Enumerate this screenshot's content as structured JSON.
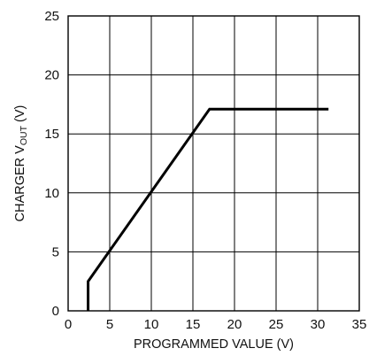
{
  "chart_data": {
    "type": "line",
    "xlabel": "PROGRAMMED VALUE (V)",
    "ylabel": {
      "prefix": "CHARGER V",
      "subscript": "OUT",
      "suffix": " (V)"
    },
    "xlim": [
      0,
      35
    ],
    "ylim": [
      0,
      25
    ],
    "x_ticks": [
      0,
      5,
      10,
      15,
      20,
      25,
      30,
      35
    ],
    "y_ticks": [
      0,
      5,
      10,
      15,
      20,
      25
    ],
    "grid": true,
    "legend": "none",
    "series": [
      {
        "color": "#000000",
        "points": [
          {
            "x": 2.4,
            "y": 0
          },
          {
            "x": 2.4,
            "y": 2.5
          },
          {
            "x": 17.0,
            "y": 17.1
          },
          {
            "x": 31.3,
            "y": 17.1
          }
        ]
      }
    ]
  }
}
